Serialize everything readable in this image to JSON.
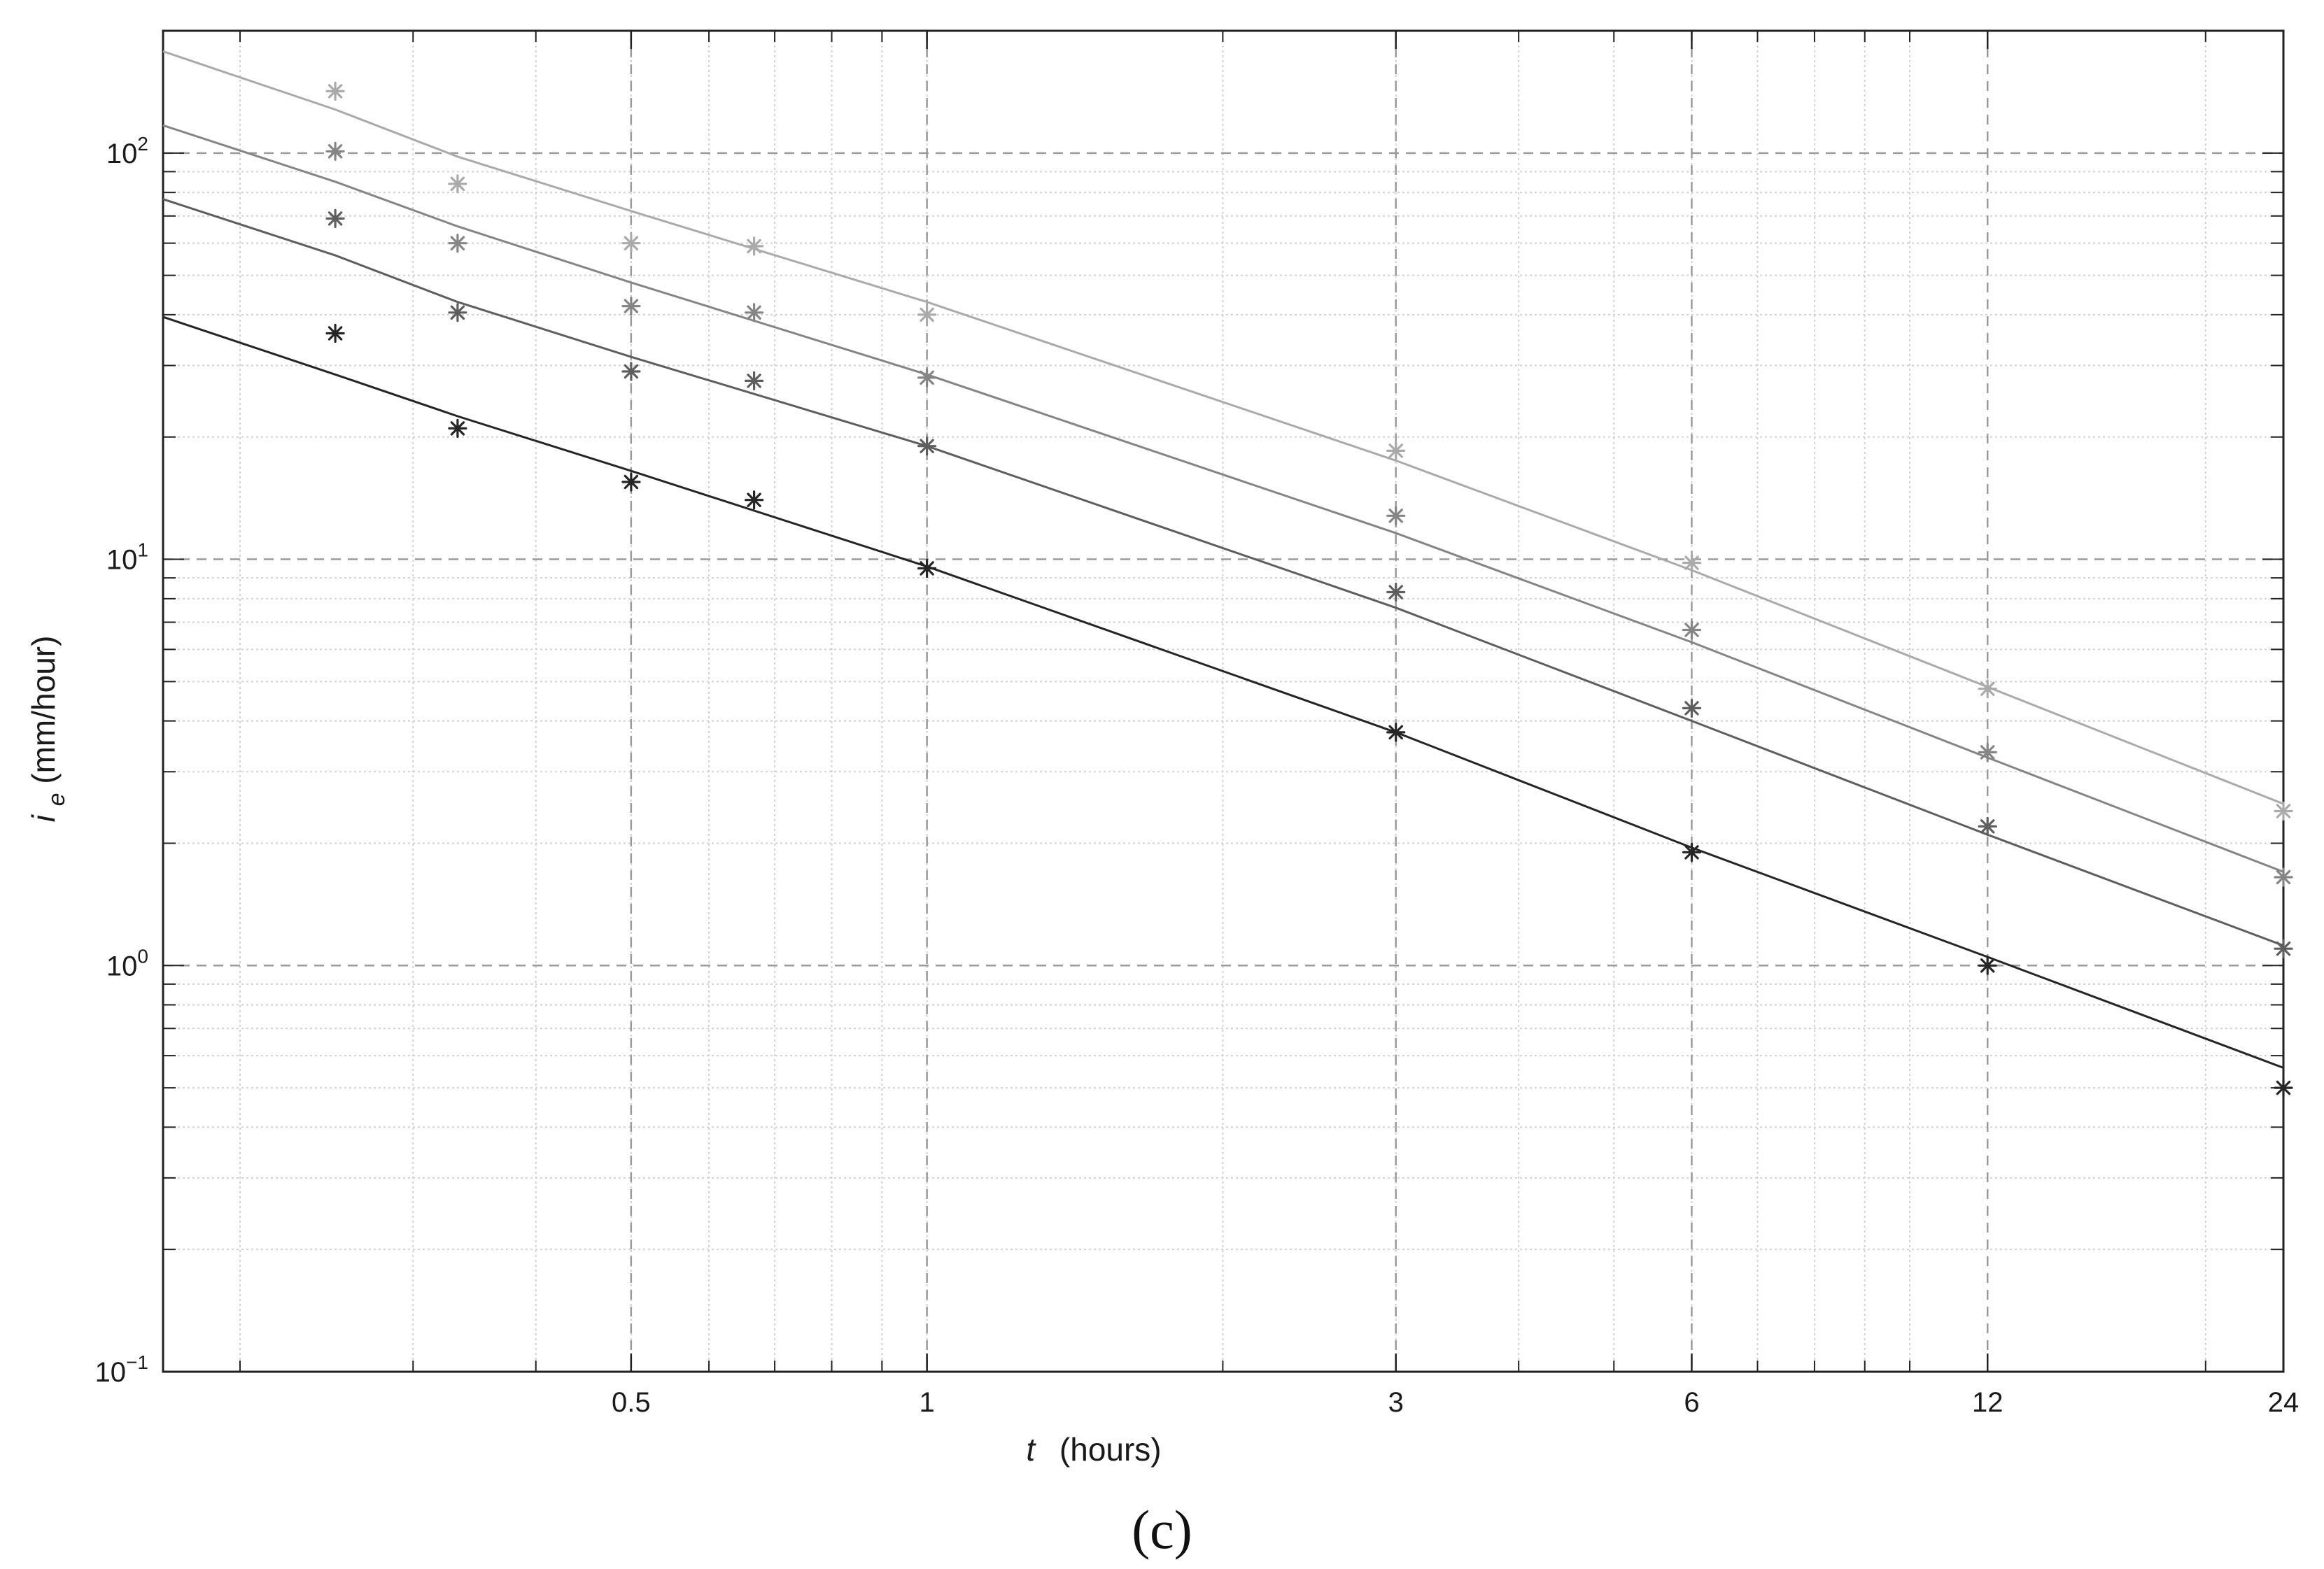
{
  "panel_label": "(c)",
  "chart_data": {
    "type": "line",
    "xlabel": "t",
    "xlabel_unit": "(hours)",
    "ylabel_symbol": "i",
    "ylabel_subscript": "e",
    "ylabel_unit": "(mm/hour)",
    "x_scale": "log",
    "y_scale": "log",
    "xlim": [
      0.167,
      24
    ],
    "ylim": [
      0.1,
      200
    ],
    "x_ticks": [
      {
        "value": 0.5,
        "label": "0.5"
      },
      {
        "value": 1,
        "label": "1"
      },
      {
        "value": 3,
        "label": "3"
      },
      {
        "value": 6,
        "label": "6"
      },
      {
        "value": 12,
        "label": "12"
      },
      {
        "value": 24,
        "label": "24"
      }
    ],
    "y_ticks": [
      {
        "value": 0.1,
        "base": "10",
        "exp": "−1"
      },
      {
        "value": 1,
        "base": "10",
        "exp": "0"
      },
      {
        "value": 10,
        "base": "10",
        "exp": "1"
      },
      {
        "value": 100,
        "base": "10",
        "exp": "2"
      }
    ],
    "grid": true,
    "legend": "none",
    "series": [
      {
        "color": "#aaaaaa",
        "curve_x": [
          0.167,
          0.25,
          0.333,
          0.5,
          1,
          3,
          6,
          12,
          24
        ],
        "curve_y": [
          178,
          128,
          98,
          72,
          43,
          17.5,
          9.4,
          4.85,
          2.5
        ],
        "points_x": [
          0.25,
          0.333,
          0.5,
          0.667,
          1,
          3,
          6,
          12,
          24
        ],
        "points_y": [
          142,
          84,
          60,
          59,
          40,
          18.5,
          9.8,
          4.8,
          2.4
        ]
      },
      {
        "color": "#858585",
        "curve_x": [
          0.167,
          0.25,
          0.333,
          0.5,
          1,
          3,
          6,
          12,
          24
        ],
        "curve_y": [
          117,
          85,
          66,
          48,
          28.5,
          11.6,
          6.25,
          3.25,
          1.7
        ],
        "points_x": [
          0.25,
          0.333,
          0.5,
          0.667,
          1,
          3,
          6,
          12,
          24
        ],
        "points_y": [
          101,
          60,
          42,
          40.5,
          28,
          12.8,
          6.7,
          3.35,
          1.65
        ]
      },
      {
        "color": "#5e5e5e",
        "curve_x": [
          0.167,
          0.25,
          0.333,
          0.5,
          1,
          3,
          6,
          12,
          24
        ],
        "curve_y": [
          77,
          56,
          43,
          31.5,
          19,
          7.6,
          4.0,
          2.1,
          1.12
        ],
        "points_x": [
          0.25,
          0.333,
          0.5,
          0.667,
          1,
          3,
          6,
          12,
          24
        ],
        "points_y": [
          69,
          40.5,
          29,
          27.5,
          19,
          8.3,
          4.3,
          2.2,
          1.1
        ]
      },
      {
        "color": "#252525",
        "curve_x": [
          0.167,
          0.25,
          0.333,
          0.5,
          1,
          3,
          6,
          12,
          24
        ],
        "curve_y": [
          39.5,
          28.5,
          22.5,
          16.5,
          9.6,
          3.75,
          1.95,
          1.05,
          0.56
        ],
        "points_x": [
          0.25,
          0.333,
          0.5,
          0.667,
          1,
          3,
          6,
          12,
          24
        ],
        "points_y": [
          36,
          21,
          15.5,
          14,
          9.5,
          3.75,
          1.9,
          1.0,
          0.5
        ]
      }
    ]
  }
}
